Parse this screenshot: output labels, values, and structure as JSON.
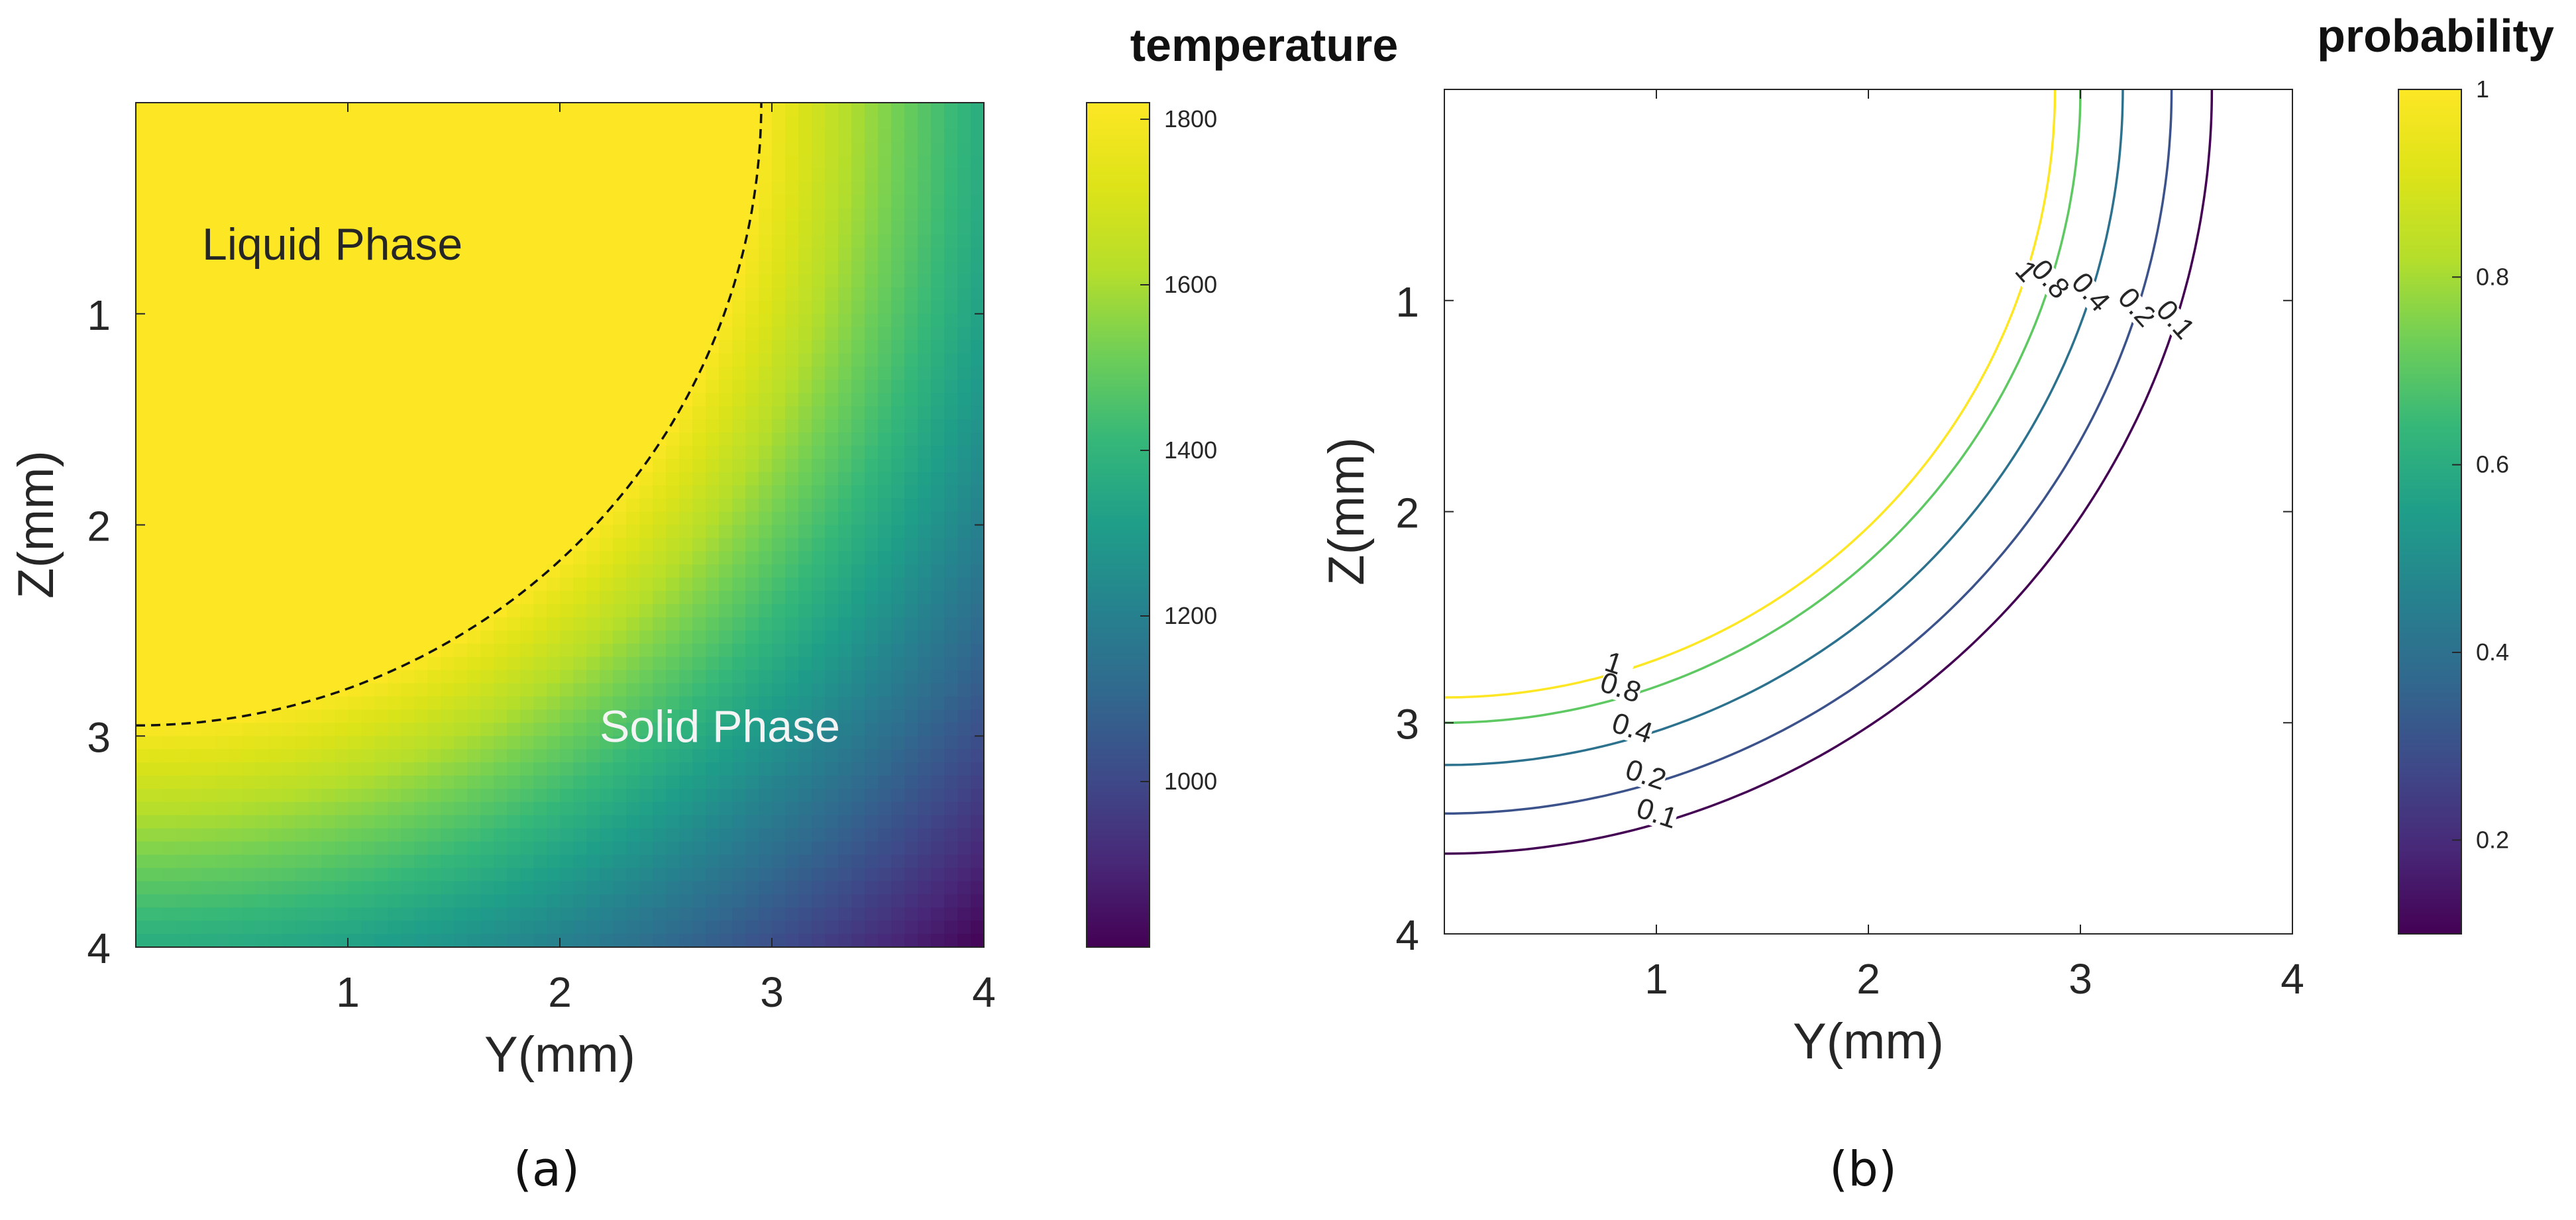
{
  "chart_data": [
    {
      "type": "heatmap",
      "panel": "(a)",
      "xlabel": "Y(mm)",
      "ylabel": "Z(mm)",
      "xlim": [
        0,
        4
      ],
      "ylim": [
        0,
        4
      ],
      "y_axis_direction": "reversed",
      "x_ticks": [
        "1",
        "2",
        "3",
        "4"
      ],
      "y_ticks": [
        "1",
        "2",
        "3",
        "4"
      ],
      "colorbar": {
        "title": "temperature",
        "colormap": "viridis",
        "range": [
          800,
          1820
        ],
        "ticks": [
          "1000",
          "1200",
          "1400",
          "1600",
          "1800"
        ]
      },
      "field": {
        "description": "radial temperature from origin (Y=0,Z=0)",
        "saturated_value": 1820,
        "saturated_radius_mm": 2.95,
        "min_value": 800,
        "min_radius_mm": 5.66
      },
      "melt_boundary": {
        "style": "dashed",
        "radius_mm": 2.95
      },
      "annotations": [
        "Liquid Phase",
        "Solid Phase"
      ],
      "caption": "(a)"
    },
    {
      "type": "contour",
      "panel": "(b)",
      "xlabel": "Y(mm)",
      "ylabel": "Z(mm)",
      "xlim": [
        0,
        4
      ],
      "ylim": [
        0,
        4
      ],
      "y_axis_direction": "reversed",
      "x_ticks": [
        "1",
        "2",
        "3",
        "4"
      ],
      "y_ticks": [
        "1",
        "2",
        "3",
        "4"
      ],
      "colorbar": {
        "title": "probability",
        "colormap": "viridis",
        "range": [
          0.1,
          1
        ],
        "ticks": [
          "0.2",
          "0.4",
          "0.6",
          "0.8",
          "1"
        ]
      },
      "contours": [
        {
          "level": 1,
          "label": "1",
          "radius_mm": 2.88,
          "color": "#fde725"
        },
        {
          "level": 0.8,
          "label": "0.8",
          "radius_mm": 3.0,
          "color": "#5ec962"
        },
        {
          "level": 0.4,
          "label": "0.4",
          "radius_mm": 3.2,
          "color": "#2c728e"
        },
        {
          "level": 0.2,
          "label": "0.2",
          "radius_mm": 3.43,
          "color": "#3b528b"
        },
        {
          "level": 0.1,
          "label": "0.1",
          "radius_mm": 3.62,
          "color": "#440154"
        }
      ],
      "caption": "(b)"
    }
  ]
}
